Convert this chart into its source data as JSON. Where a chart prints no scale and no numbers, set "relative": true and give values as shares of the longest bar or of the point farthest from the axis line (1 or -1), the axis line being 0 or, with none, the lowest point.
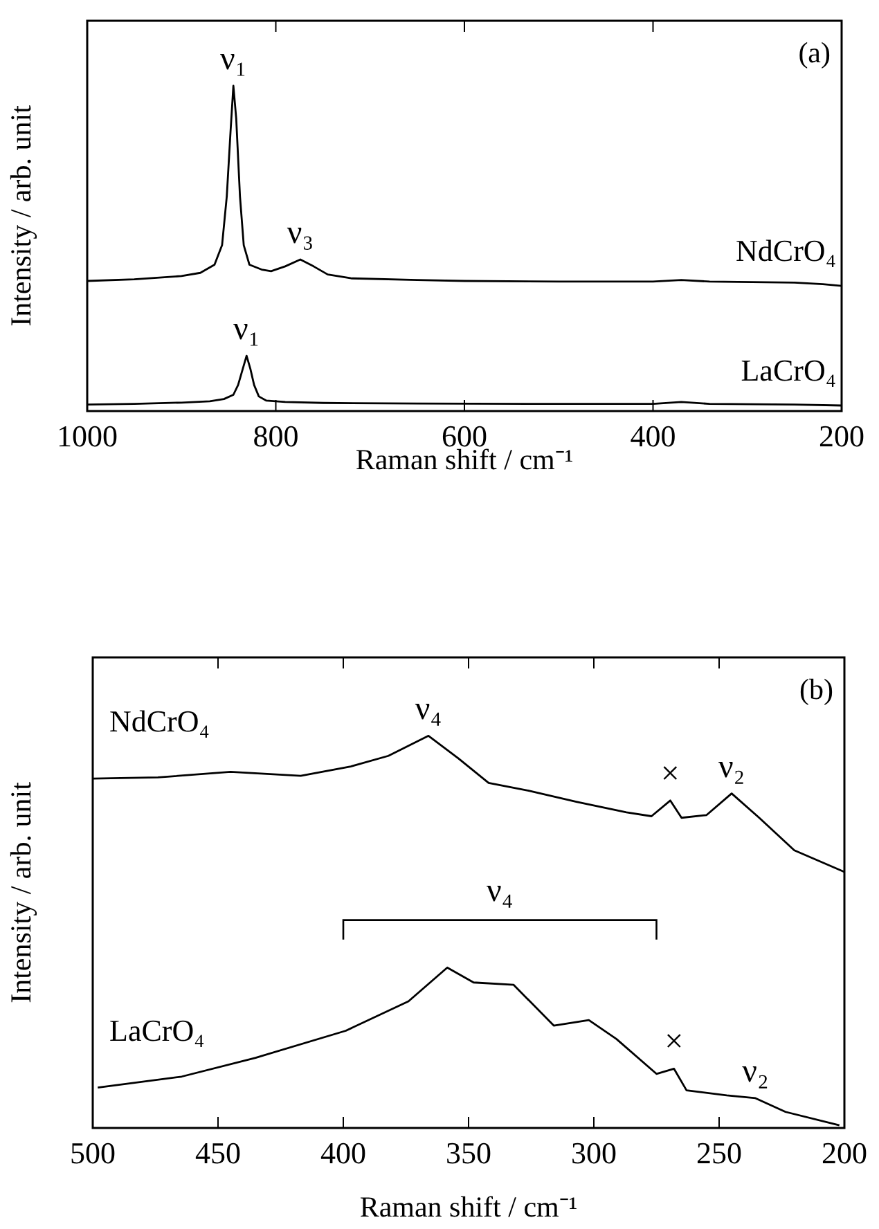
{
  "chart_data": [
    {
      "type": "line",
      "relative": true,
      "xlabel": "Raman shift / cm⁻¹",
      "ylabel": "Intensity / arb. unit",
      "xlim": [
        1000,
        200
      ],
      "xticks": [
        1000,
        800,
        600,
        400,
        200
      ],
      "tick_labels": "x",
      "grid": false,
      "series": [
        {
          "name": "NdCrO₄",
          "color": "#000000",
          "x": [
            1000,
            950,
            900,
            880,
            865,
            857,
            852,
            848,
            845,
            842,
            838,
            834,
            828,
            815,
            805,
            790,
            774,
            760,
            745,
            720,
            650,
            600,
            500,
            400,
            370,
            340,
            250,
            220,
            200
          ],
          "values": [
            0.4,
            0.405,
            0.415,
            0.425,
            0.45,
            0.51,
            0.66,
            0.86,
            1.0,
            0.9,
            0.66,
            0.51,
            0.45,
            0.435,
            0.43,
            0.445,
            0.466,
            0.445,
            0.42,
            0.408,
            0.403,
            0.4,
            0.398,
            0.398,
            0.403,
            0.398,
            0.395,
            0.39,
            0.385
          ]
        },
        {
          "name": "LaCrO₄",
          "color": "#000000",
          "x": [
            1000,
            950,
            900,
            870,
            855,
            845,
            840,
            835,
            831,
            827,
            823,
            818,
            810,
            790,
            750,
            650,
            500,
            400,
            370,
            340,
            250,
            200
          ],
          "values": [
            0.02,
            0.022,
            0.026,
            0.03,
            0.037,
            0.05,
            0.08,
            0.13,
            0.17,
            0.13,
            0.08,
            0.045,
            0.032,
            0.028,
            0.025,
            0.023,
            0.022,
            0.022,
            0.028,
            0.022,
            0.02,
            0.017
          ]
        }
      ],
      "annotations": [
        "(a)",
        {
          "text": "ν₁",
          "x": 845,
          "y": 1.0
        },
        {
          "text": "ν₃",
          "x": 774,
          "y": 0.466
        },
        {
          "text": "ν₁",
          "x": 831,
          "y": 0.17
        }
      ]
    },
    {
      "type": "line",
      "relative": true,
      "xlabel": "Raman shift / cm⁻¹",
      "ylabel": "Intensity / arb. unit",
      "xlim": [
        500,
        200
      ],
      "xticks": [
        500,
        450,
        400,
        350,
        300,
        250,
        200
      ],
      "tick_labels": "x",
      "grid": false,
      "series": [
        {
          "name": "NdCrO₄",
          "color": "#000000",
          "x": [
            500,
            474,
            445,
            417,
            397,
            382,
            366,
            354,
            342,
            326,
            307,
            287,
            277,
            269.5,
            265,
            255,
            245,
            234,
            220,
            200
          ],
          "values": [
            0.891,
            0.894,
            0.908,
            0.898,
            0.922,
            0.949,
            1.0,
            0.942,
            0.88,
            0.86,
            0.832,
            0.805,
            0.795,
            0.835,
            0.791,
            0.798,
            0.853,
            0.791,
            0.708,
            0.653
          ]
        },
        {
          "name": "LaCrO₄",
          "color": "#000000",
          "x": [
            498,
            464.5,
            435,
            399,
            374,
            358.5,
            348,
            332,
            316,
            302,
            291,
            275,
            268,
            263,
            247,
            235.5,
            223.5,
            202
          ],
          "values": [
            0.103,
            0.131,
            0.179,
            0.248,
            0.323,
            0.409,
            0.371,
            0.365,
            0.261,
            0.275,
            0.227,
            0.138,
            0.151,
            0.096,
            0.083,
            0.076,
            0.041,
            0.007
          ]
        }
      ],
      "annotations": [
        "(b)",
        "ν₄",
        {
          "text": "ν₄",
          "x": 366,
          "y": 1.0
        },
        {
          "text": "×",
          "x": 269.5,
          "y": 0.835
        },
        {
          "text": "ν₂",
          "x": 245,
          "y": 0.853
        },
        {
          "text": "×",
          "x": 268,
          "y": 0.151
        },
        {
          "text": "ν₂",
          "x": 235.5,
          "y": 0.076
        }
      ]
    }
  ]
}
